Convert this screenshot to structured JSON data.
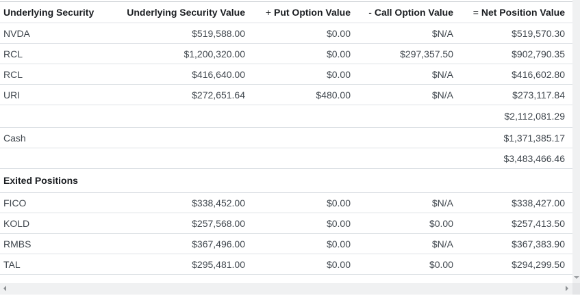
{
  "table": {
    "columns": [
      {
        "prefix": "",
        "label": "Underlying Security"
      },
      {
        "prefix": "",
        "label": "Underlying Security Value"
      },
      {
        "prefix": "+",
        "label": "Put Option Value"
      },
      {
        "prefix": "-",
        "label": "Call Option Value"
      },
      {
        "prefix": "=",
        "label": "Net Position Value"
      }
    ],
    "rows": [
      {
        "type": "data",
        "security": "NVDA",
        "value": "$519,588.00",
        "put": "$0.00",
        "call": "$N/A",
        "net": "$519,570.30"
      },
      {
        "type": "data",
        "security": "RCL",
        "value": "$1,200,320.00",
        "put": "$0.00",
        "call": "$297,357.50",
        "net": "$902,790.35"
      },
      {
        "type": "data",
        "security": "RCL",
        "value": "$416,640.00",
        "put": "$0.00",
        "call": "$N/A",
        "net": "$416,602.80"
      },
      {
        "type": "data",
        "security": "URI",
        "value": "$272,651.64",
        "put": "$480.00",
        "call": "$N/A",
        "net": "$273,117.84"
      },
      {
        "type": "subtotal",
        "security": "",
        "value": "",
        "put": "",
        "call": "",
        "net": "$2,112,081.29"
      },
      {
        "type": "data",
        "security": "Cash",
        "value": "",
        "put": "",
        "call": "",
        "net": "$1,371,385.17"
      },
      {
        "type": "total",
        "security": "",
        "value": "",
        "put": "",
        "call": "",
        "net": "$3,483,466.46"
      },
      {
        "type": "section",
        "label": "Exited Positions"
      },
      {
        "type": "data",
        "security": "FICO",
        "value": "$338,452.00",
        "put": "$0.00",
        "call": "$N/A",
        "net": "$338,427.00"
      },
      {
        "type": "data",
        "security": "KOLD",
        "value": "$257,568.00",
        "put": "$0.00",
        "call": "$0.00",
        "net": "$257,413.50"
      },
      {
        "type": "data",
        "security": "RMBS",
        "value": "$367,496.00",
        "put": "$0.00",
        "call": "$N/A",
        "net": "$367,383.90"
      },
      {
        "type": "data",
        "security": "TAL",
        "value": "$295,481.00",
        "put": "$0.00",
        "call": "$0.00",
        "net": "$294,299.50"
      }
    ]
  },
  "icons": {
    "scroll_down": "triangle-down",
    "scroll_left": "triangle-left",
    "scroll_right": "triangle-right"
  },
  "colors": {
    "header_text": "#1a1d21",
    "body_text": "#3f464d",
    "row_border": "#dde1e5",
    "top_border": "#c9cdd1",
    "scrollbar_track": "#f0f1f2",
    "scrollbar_corner": "#e4e5e7",
    "arrow": "#8e9194"
  }
}
